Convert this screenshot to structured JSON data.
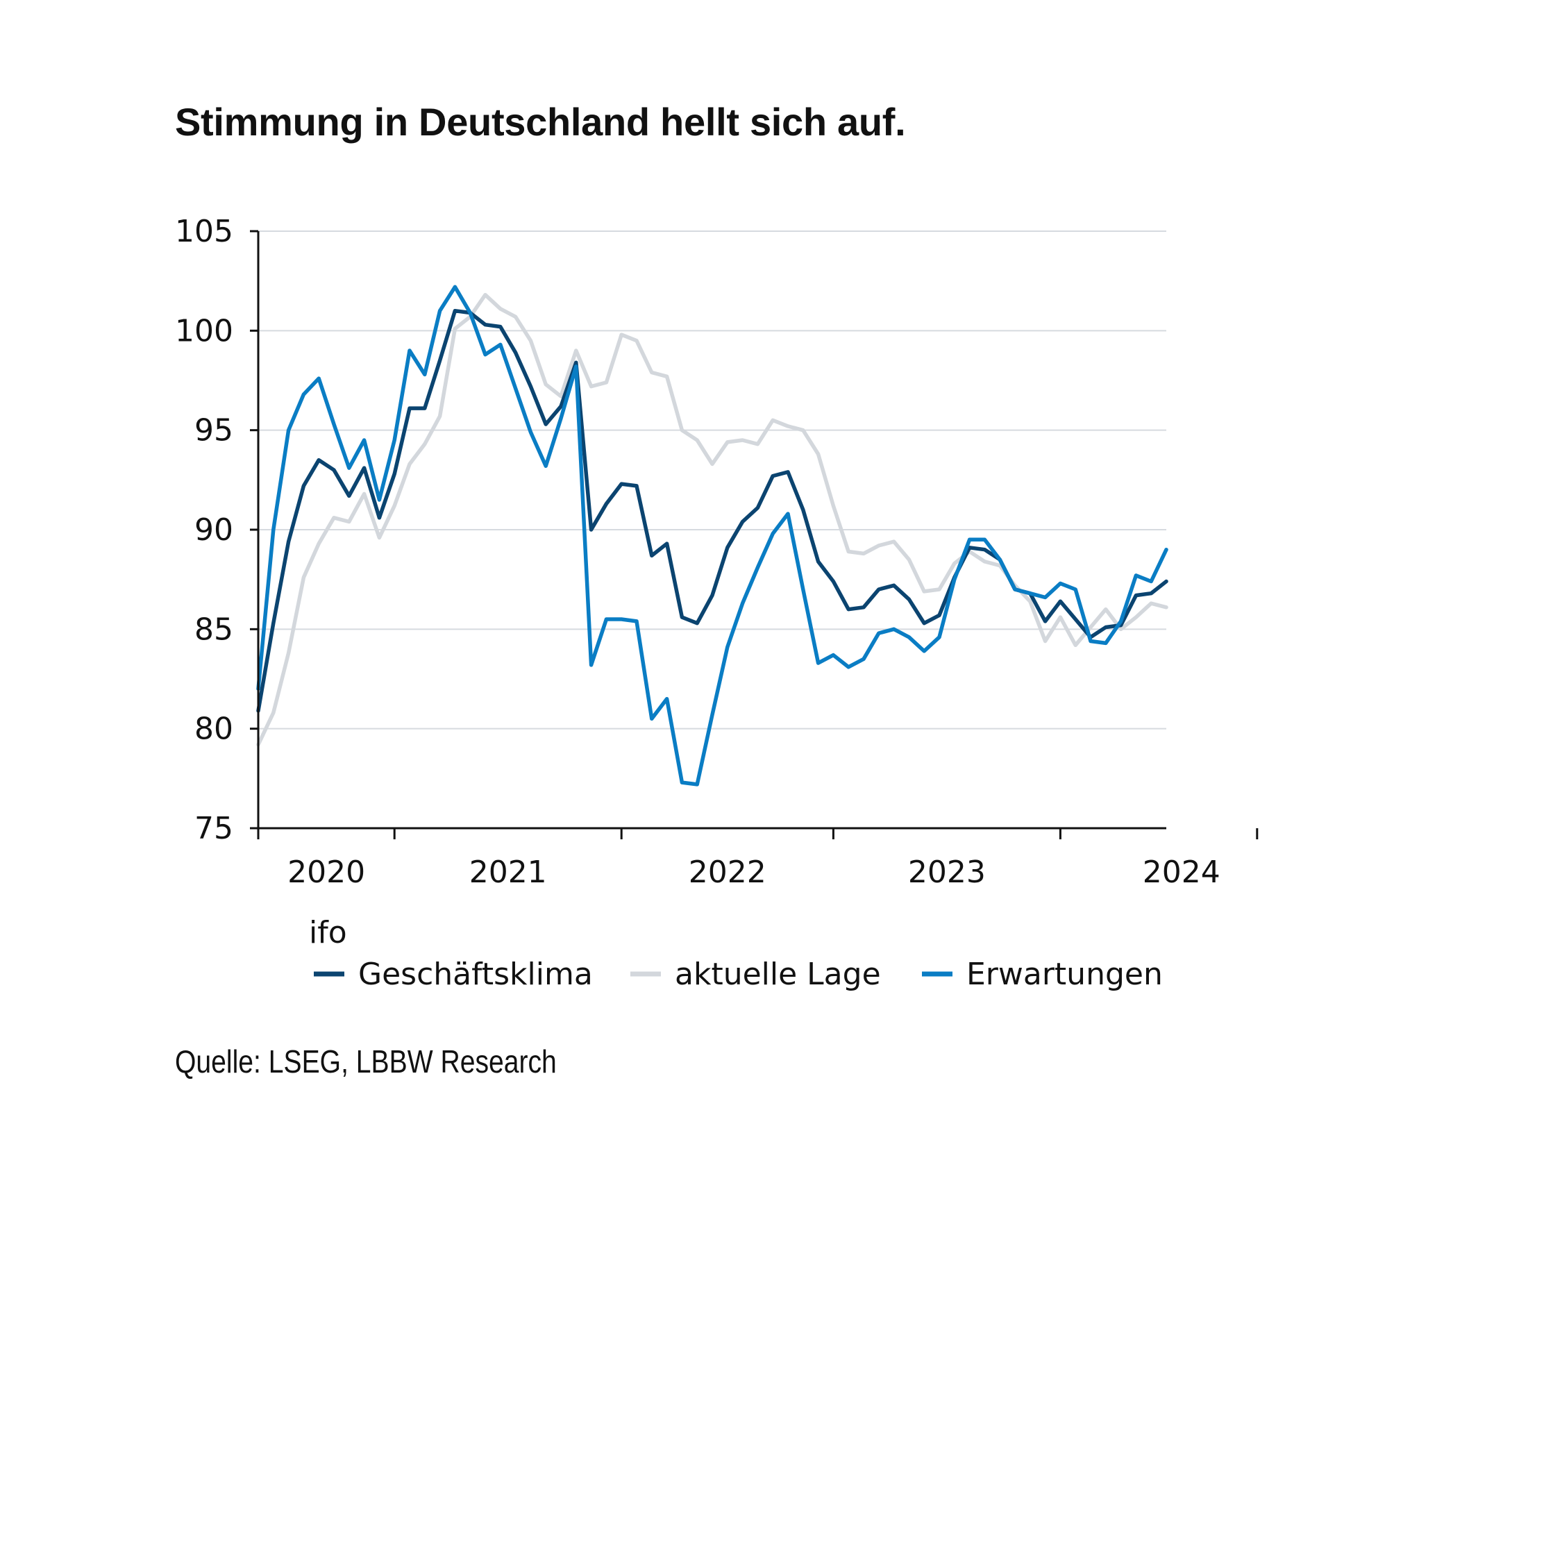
{
  "title": "Stimmung in Deutschland hellt sich auf.",
  "source": "Quelle: LSEG, LBBW Research",
  "chart_data": {
    "type": "line",
    "ylim": [
      75,
      105
    ],
    "yticks": [
      75,
      80,
      85,
      90,
      95,
      100,
      105
    ],
    "x_start": "2020-01",
    "x_end": "2025-01",
    "year_labels": [
      "2020",
      "2021",
      "2022",
      "2023",
      "2024"
    ],
    "grid": true,
    "legend_title": "ifo",
    "legend_position": "bottom",
    "series": [
      {
        "name": "Geschäftsklima",
        "color": "#0b4470",
        "values": [
          80.9,
          85.3,
          89.4,
          92.2,
          93.5,
          93.0,
          91.7,
          93.1,
          90.6,
          92.8,
          96.1,
          96.1,
          98.5,
          101.0,
          100.9,
          100.3,
          100.2,
          98.9,
          97.2,
          95.3,
          96.2,
          98.4,
          90.0,
          91.3,
          92.3,
          92.2,
          88.7,
          89.3,
          85.6,
          85.3,
          86.7,
          89.1,
          90.4,
          91.1,
          92.7,
          92.9,
          91.0,
          88.4,
          87.4,
          86.0,
          86.1,
          87.0,
          87.2,
          86.5,
          85.3,
          85.7,
          87.6,
          89.1,
          89.0,
          88.5,
          87.0,
          86.8,
          85.4,
          86.4,
          85.5,
          84.6,
          85.1,
          85.2,
          86.7,
          86.8,
          87.4
        ],
        "x_offset_months": 0
      },
      {
        "name": "aktuelle Lage",
        "color": "#d3d7dc",
        "values": [
          79.2,
          80.8,
          83.8,
          87.6,
          89.3,
          90.6,
          90.4,
          91.8,
          89.6,
          91.2,
          93.3,
          94.3,
          95.7,
          100.1,
          100.7,
          101.8,
          101.1,
          100.7,
          99.5,
          97.3,
          96.7,
          99.0,
          97.2,
          97.4,
          99.8,
          99.5,
          97.9,
          97.7,
          95.0,
          94.5,
          93.3,
          94.4,
          94.5,
          94.3,
          95.5,
          95.2,
          95.0,
          93.8,
          91.2,
          88.9,
          88.8,
          89.2,
          89.4,
          88.5,
          86.9,
          87.0,
          88.3,
          88.9,
          88.4,
          88.2,
          87.2,
          86.4,
          84.4,
          85.6,
          84.2,
          85.1,
          86.0,
          85.0,
          85.6,
          86.3,
          86.1
        ],
        "x_offset_months": 0
      },
      {
        "name": "Erwartungen",
        "color": "#0a7dc4",
        "values": [
          82.0,
          90.0,
          95.0,
          96.8,
          97.6,
          95.3,
          93.1,
          94.5,
          91.5,
          94.5,
          99.0,
          97.8,
          101.0,
          102.2,
          100.9,
          98.8,
          99.3,
          97.1,
          94.9,
          93.2,
          95.6,
          98.2,
          83.2,
          85.5,
          85.5,
          85.4,
          80.5,
          81.5,
          77.3,
          77.2,
          80.7,
          84.1,
          86.3,
          88.1,
          89.8,
          90.8,
          87.0,
          83.3,
          83.7,
          83.1,
          83.5,
          84.8,
          85.0,
          84.6,
          83.9,
          84.6,
          87.5,
          89.5,
          89.5,
          88.5,
          87.0,
          86.8,
          86.6,
          87.3,
          87.0,
          84.4,
          84.3,
          85.4,
          87.7,
          87.4,
          89.0
        ],
        "x_offset_months": 0
      }
    ]
  }
}
